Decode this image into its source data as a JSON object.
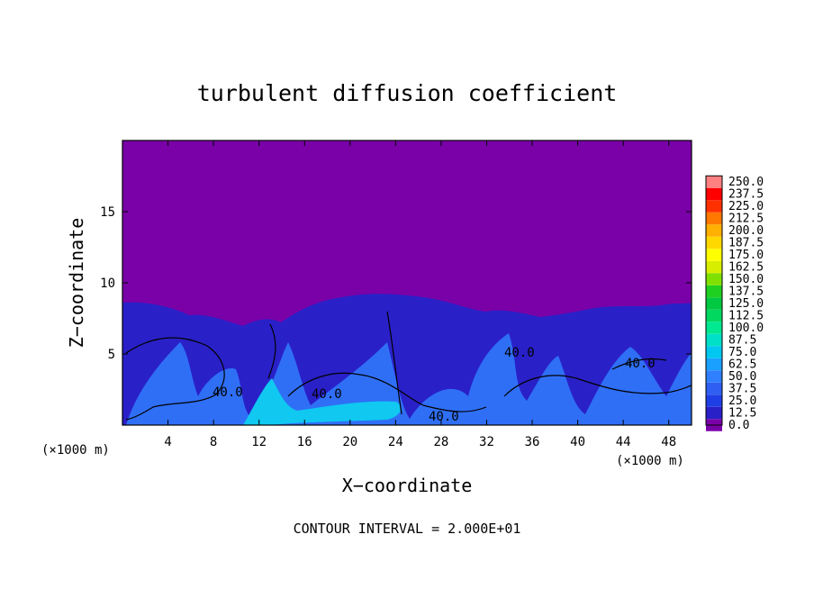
{
  "chart_data": {
    "type": "heatmap",
    "title": "turbulent diffusion coefficient",
    "xlabel": "X−coordinate",
    "ylabel": "Z−coordinate",
    "x_unit": "(×1000 m)",
    "z_unit": "(×1000 m)",
    "xlim": [
      0,
      50
    ],
    "zlim": [
      0,
      20
    ],
    "x_ticks": [
      4,
      8,
      12,
      16,
      20,
      24,
      28,
      32,
      36,
      40,
      44,
      48
    ],
    "z_ticks": [
      5,
      10,
      15
    ],
    "colorbar": {
      "levels": [
        "0.0",
        "12.5",
        "25.0",
        "37.5",
        "50.0",
        "62.5",
        "75.0",
        "87.5",
        "100.0",
        "112.5",
        "125.0",
        "137.5",
        "150.0",
        "162.5",
        "175.0",
        "187.5",
        "200.0",
        "212.5",
        "225.0",
        "237.5",
        "250.0"
      ],
      "colors": [
        "#7a00a8",
        "#2a20c8",
        "#1f3fe6",
        "#2f5ff2",
        "#2f7fff",
        "#1aa0ff",
        "#00c8f0",
        "#00e0c8",
        "#00e890",
        "#00d860",
        "#00c840",
        "#20d020",
        "#80e000",
        "#d8ee00",
        "#ffff00",
        "#ffd800",
        "#ffb000",
        "#ff7800",
        "#ff3000",
        "#ff0000",
        "#ff8080"
      ]
    },
    "contour_labels": [
      "40.0",
      "40.0",
      "40.0",
      "40.0",
      "40.0"
    ],
    "footer": "CONTOUR INTERVAL = 2.000E+01"
  }
}
